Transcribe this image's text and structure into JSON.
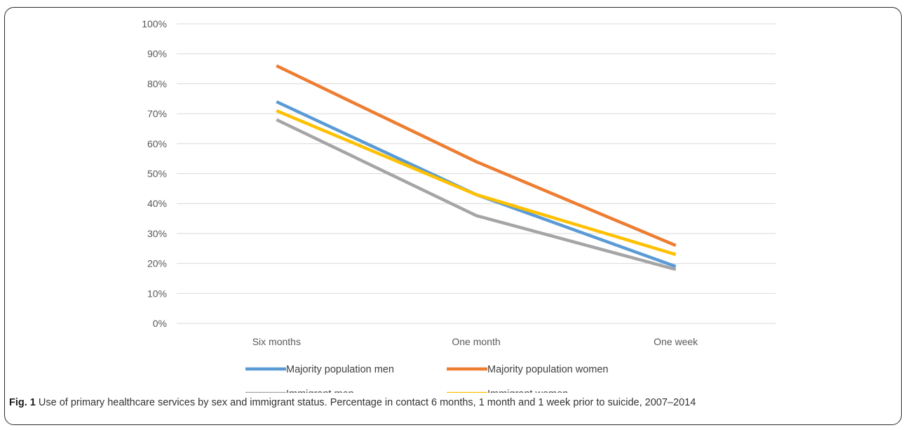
{
  "chart_data": {
    "type": "line",
    "categories": [
      "Six months",
      "One month",
      "One week"
    ],
    "ylim": [
      0,
      100
    ],
    "yticks": [
      0,
      10,
      20,
      30,
      40,
      50,
      60,
      70,
      80,
      90,
      100
    ],
    "ytick_suffix": "%",
    "grid": true,
    "legend_position": "bottom",
    "series": [
      {
        "name": "Majority population men",
        "values": [
          74,
          43,
          19
        ],
        "color": "#5B9BD5"
      },
      {
        "name": "Majority population women",
        "values": [
          86,
          54,
          26
        ],
        "color": "#ED7D31"
      },
      {
        "name": "Immigrant men",
        "values": [
          68,
          36,
          18
        ],
        "color": "#A5A5A5"
      },
      {
        "name": "Immigrant women",
        "values": [
          71,
          43,
          23
        ],
        "color": "#FFC000"
      }
    ]
  },
  "caption": {
    "label": "Fig. 1",
    "text": " Use of primary healthcare services by sex and immigrant status. Percentage in contact 6 months, 1 month and 1 week prior to suicide, 2007–2014"
  }
}
